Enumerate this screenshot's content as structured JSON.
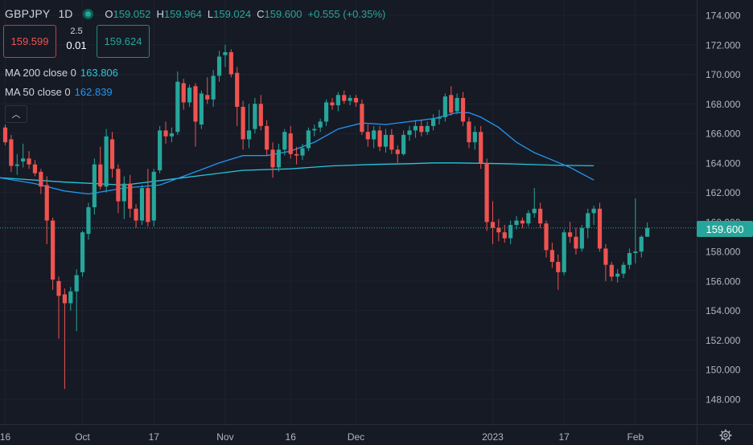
{
  "legend": {
    "symbol": "GBPJPY",
    "timeframe": "1D",
    "open_label": "O",
    "open": "159.052",
    "high_label": "H",
    "high": "159.964",
    "low_label": "L",
    "low": "159.024",
    "close_label": "C",
    "close": "159.600",
    "change": "+0.555 (+0.35%)"
  },
  "trade": {
    "sell_price": "159.599",
    "spread": "2.5",
    "quantity": "0.01",
    "buy_price": "159.624"
  },
  "indicators": [
    {
      "label": "MA 200 close 0",
      "value": "163.806",
      "color": "#26c6da"
    },
    {
      "label": "MA 50 close 0",
      "value": "162.839",
      "color": "#2196f3"
    }
  ],
  "collapse_glyph": "︿",
  "last_price": "159.600",
  "colors": {
    "background": "#161a25",
    "up": "#26a69a",
    "down": "#ef5350",
    "grid": "#1f2330",
    "axis_text": "#b2b5be"
  },
  "chart_data": {
    "type": "candlestick",
    "symbol": "GBPJPY",
    "interval": "1D",
    "y_axis": {
      "range": [
        146.5,
        175.0
      ],
      "ticks": [
        "148.000",
        "150.000",
        "152.000",
        "154.000",
        "156.000",
        "158.000",
        "160.000",
        "162.000",
        "164.000",
        "166.000",
        "168.000",
        "170.000",
        "172.000",
        "174.000"
      ]
    },
    "x_axis": {
      "ticks": [
        {
          "label": "16",
          "i": 0
        },
        {
          "label": "Oct",
          "i": 13
        },
        {
          "label": "17",
          "i": 25
        },
        {
          "label": "Nov",
          "i": 37
        },
        {
          "label": "16",
          "i": 48
        },
        {
          "label": "Dec",
          "i": 59
        },
        {
          "label": "2023",
          "i": 82
        },
        {
          "label": "17",
          "i": 94
        },
        {
          "label": "Feb",
          "i": 106
        }
      ]
    },
    "last_price": 159.6,
    "candles": [
      [
        166.4,
        166.6,
        165.2,
        165.4
      ],
      [
        165.6,
        165.9,
        163.4,
        163.8
      ],
      [
        163.8,
        164.6,
        163.2,
        163.9
      ],
      [
        164.1,
        165.3,
        163.7,
        164.3
      ],
      [
        164.3,
        164.8,
        163.6,
        163.9
      ],
      [
        163.9,
        164.2,
        163.1,
        163.3
      ],
      [
        163.4,
        163.6,
        161.9,
        162.4
      ],
      [
        162.5,
        163.1,
        158.5,
        160.1
      ],
      [
        160.1,
        160.3,
        155.4,
        156.1
      ],
      [
        156.0,
        156.3,
        152.1,
        155.0
      ],
      [
        155.1,
        155.5,
        148.7,
        154.5
      ],
      [
        154.5,
        155.6,
        154.0,
        155.3
      ],
      [
        155.3,
        156.8,
        152.6,
        156.4
      ],
      [
        156.6,
        159.4,
        156.3,
        159.3
      ],
      [
        159.2,
        161.3,
        158.8,
        161.0
      ],
      [
        161.0,
        164.3,
        160.5,
        163.9
      ],
      [
        163.9,
        165.1,
        162.2,
        162.4
      ],
      [
        162.4,
        166.3,
        162.0,
        165.8
      ],
      [
        165.6,
        166.1,
        163.0,
        163.6
      ],
      [
        163.6,
        163.9,
        160.6,
        161.4
      ],
      [
        161.4,
        163.1,
        160.2,
        162.6
      ],
      [
        162.6,
        163.2,
        160.3,
        160.9
      ],
      [
        160.9,
        161.2,
        159.6,
        160.1
      ],
      [
        160.1,
        162.5,
        159.8,
        162.3
      ],
      [
        162.3,
        163.6,
        159.7,
        160.0
      ],
      [
        160.1,
        163.6,
        159.7,
        163.4
      ],
      [
        163.5,
        166.5,
        163.3,
        166.2
      ],
      [
        166.2,
        166.8,
        165.3,
        165.8
      ],
      [
        165.8,
        166.4,
        165.4,
        166.0
      ],
      [
        166.1,
        170.2,
        165.9,
        169.5
      ],
      [
        169.4,
        169.7,
        167.6,
        168.1
      ],
      [
        168.1,
        169.3,
        167.8,
        169.1
      ],
      [
        169.2,
        169.4,
        165.1,
        166.8
      ],
      [
        166.6,
        168.9,
        166.3,
        168.7
      ],
      [
        168.6,
        169.8,
        168.0,
        168.3
      ],
      [
        168.3,
        170.3,
        167.8,
        169.9
      ],
      [
        169.9,
        171.6,
        169.5,
        171.2
      ],
      [
        171.3,
        172.0,
        170.5,
        171.5
      ],
      [
        171.5,
        171.7,
        169.8,
        170.0
      ],
      [
        170.1,
        170.5,
        166.5,
        167.8
      ],
      [
        167.8,
        168.2,
        164.9,
        165.6
      ],
      [
        165.6,
        168.0,
        165.0,
        166.2
      ],
      [
        166.3,
        168.4,
        166.0,
        168.0
      ],
      [
        168.0,
        168.6,
        166.2,
        166.5
      ],
      [
        166.5,
        166.9,
        164.5,
        164.9
      ],
      [
        164.9,
        165.4,
        163.0,
        163.7
      ],
      [
        163.7,
        165.3,
        163.4,
        164.9
      ],
      [
        164.9,
        166.3,
        164.5,
        166.1
      ],
      [
        166.0,
        166.5,
        164.3,
        164.6
      ],
      [
        164.6,
        165.1,
        163.9,
        164.5
      ],
      [
        164.5,
        165.3,
        164.2,
        165.0
      ],
      [
        165.0,
        166.4,
        164.8,
        166.2
      ],
      [
        166.2,
        166.6,
        165.8,
        166.3
      ],
      [
        166.4,
        167.0,
        166.1,
        166.8
      ],
      [
        166.8,
        168.3,
        166.5,
        168.1
      ],
      [
        168.1,
        168.4,
        167.6,
        167.9
      ],
      [
        167.9,
        168.8,
        167.5,
        168.6
      ],
      [
        168.6,
        168.9,
        168.0,
        168.2
      ],
      [
        168.2,
        168.6,
        167.9,
        168.4
      ],
      [
        168.4,
        168.6,
        167.8,
        168.1
      ],
      [
        168.0,
        168.3,
        165.9,
        166.1
      ],
      [
        166.1,
        166.6,
        165.1,
        165.6
      ],
      [
        165.6,
        166.5,
        165.0,
        166.2
      ],
      [
        166.2,
        166.5,
        164.8,
        165.1
      ],
      [
        165.1,
        166.3,
        164.7,
        165.9
      ],
      [
        165.9,
        166.3,
        164.6,
        164.9
      ],
      [
        164.9,
        165.2,
        164.0,
        164.6
      ],
      [
        164.6,
        166.2,
        164.5,
        165.9
      ],
      [
        165.9,
        166.5,
        165.5,
        166.2
      ],
      [
        166.2,
        166.9,
        165.7,
        166.5
      ],
      [
        166.5,
        166.9,
        165.8,
        166.1
      ],
      [
        166.1,
        166.8,
        165.9,
        166.5
      ],
      [
        166.5,
        167.3,
        166.2,
        167.0
      ],
      [
        167.0,
        167.6,
        166.6,
        167.1
      ],
      [
        167.1,
        168.7,
        166.8,
        168.5
      ],
      [
        168.6,
        169.2,
        167.2,
        167.4
      ],
      [
        167.5,
        168.7,
        167.3,
        168.4
      ],
      [
        168.4,
        168.8,
        166.5,
        166.8
      ],
      [
        166.8,
        167.1,
        165.0,
        165.4
      ],
      [
        165.4,
        166.5,
        164.9,
        166.1
      ],
      [
        166.1,
        166.5,
        163.6,
        164.0
      ],
      [
        164.0,
        164.3,
        159.4,
        160.0
      ],
      [
        160.0,
        161.4,
        158.5,
        159.6
      ],
      [
        159.6,
        160.2,
        158.7,
        159.3
      ],
      [
        159.3,
        159.8,
        158.6,
        158.9
      ],
      [
        158.9,
        160.1,
        158.5,
        159.8
      ],
      [
        159.8,
        160.4,
        159.5,
        160.1
      ],
      [
        160.1,
        160.3,
        159.6,
        159.9
      ],
      [
        159.9,
        160.8,
        159.7,
        160.6
      ],
      [
        160.6,
        162.3,
        160.3,
        160.9
      ],
      [
        160.9,
        161.3,
        159.6,
        159.9
      ],
      [
        159.9,
        160.1,
        157.6,
        158.1
      ],
      [
        158.1,
        158.6,
        156.9,
        157.3
      ],
      [
        157.3,
        157.8,
        155.4,
        156.6
      ],
      [
        156.6,
        159.5,
        156.4,
        159.3
      ],
      [
        159.3,
        160.0,
        158.6,
        159.0
      ],
      [
        159.0,
        159.6,
        157.8,
        158.2
      ],
      [
        158.2,
        159.8,
        158.0,
        159.6
      ],
      [
        159.6,
        160.9,
        158.9,
        160.6
      ],
      [
        160.6,
        161.1,
        159.8,
        160.9
      ],
      [
        160.9,
        161.3,
        158.0,
        158.2
      ],
      [
        158.2,
        158.5,
        156.0,
        157.1
      ],
      [
        157.1,
        157.3,
        156.0,
        156.3
      ],
      [
        156.3,
        156.8,
        155.9,
        156.5
      ],
      [
        156.5,
        157.3,
        156.2,
        157.1
      ],
      [
        157.1,
        158.2,
        156.8,
        157.9
      ],
      [
        157.9,
        161.6,
        157.2,
        158.0
      ],
      [
        158.0,
        159.1,
        157.6,
        159.0
      ],
      [
        159.0,
        159.96,
        159.02,
        159.6
      ]
    ],
    "ma200_line": [
      [
        -1,
        163.0
      ],
      [
        10,
        162.7
      ],
      [
        20,
        162.5
      ],
      [
        30,
        163.0
      ],
      [
        40,
        163.5
      ],
      [
        48,
        163.6
      ],
      [
        55,
        163.8
      ],
      [
        62,
        163.9
      ],
      [
        68,
        163.95
      ],
      [
        72,
        164.0
      ],
      [
        76,
        164.0
      ],
      [
        84,
        163.95
      ],
      [
        92,
        163.85
      ],
      [
        99,
        163.806
      ]
    ],
    "ma50_line": [
      [
        -1,
        163.0
      ],
      [
        5,
        162.6
      ],
      [
        10,
        162.1
      ],
      [
        14,
        161.9
      ],
      [
        20,
        162.3
      ],
      [
        26,
        162.5
      ],
      [
        32,
        163.4
      ],
      [
        36,
        164.0
      ],
      [
        40,
        164.5
      ],
      [
        44,
        164.5
      ],
      [
        48,
        164.8
      ],
      [
        52,
        165.4
      ],
      [
        56,
        166.3
      ],
      [
        60,
        166.7
      ],
      [
        64,
        166.6
      ],
      [
        68,
        166.8
      ],
      [
        72,
        167.0
      ],
      [
        76,
        167.4
      ],
      [
        78,
        167.4
      ],
      [
        80,
        167.1
      ],
      [
        83,
        166.4
      ],
      [
        86,
        165.4
      ],
      [
        89,
        164.7
      ],
      [
        92,
        164.2
      ],
      [
        95,
        163.7
      ],
      [
        99,
        162.839
      ]
    ]
  }
}
